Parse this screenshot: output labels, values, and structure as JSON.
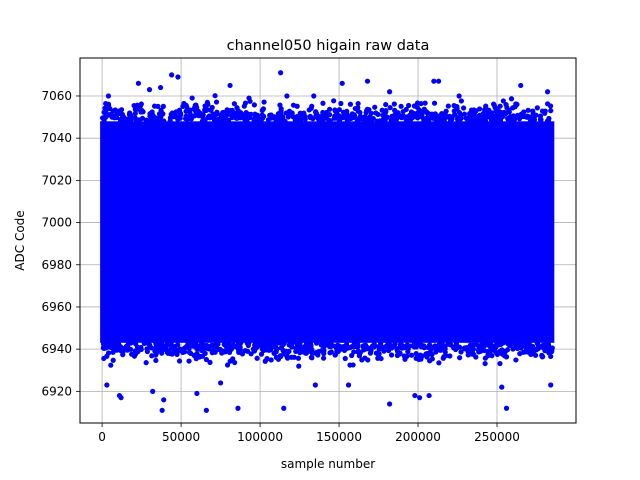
{
  "chart_data": {
    "type": "scatter",
    "title": "channel050 higain raw data",
    "xlabel": "sample number",
    "ylabel": "ADC Code",
    "xlim": [
      -14000,
      300000
    ],
    "ylim": [
      6905,
      7078
    ],
    "x_ticks": [
      0,
      50000,
      100000,
      150000,
      200000,
      250000
    ],
    "y_ticks": [
      6920,
      6940,
      6960,
      6980,
      7000,
      7020,
      7040,
      7060
    ],
    "grid": true,
    "color": "#0000ff",
    "series": [
      {
        "sample_count": 285000,
        "x_range": [
          0,
          285000
        ],
        "dense_band": [
          6943,
          7048
        ],
        "points": [
          {
            "x": 113000,
            "y": 7071
          },
          {
            "x": 44000,
            "y": 7070
          },
          {
            "x": 48000,
            "y": 7069
          },
          {
            "x": 210000,
            "y": 7067
          },
          {
            "x": 213000,
            "y": 7067
          },
          {
            "x": 168000,
            "y": 7067
          },
          {
            "x": 23000,
            "y": 7066
          },
          {
            "x": 152000,
            "y": 7066
          },
          {
            "x": 265000,
            "y": 7065
          },
          {
            "x": 81000,
            "y": 7065
          },
          {
            "x": 37000,
            "y": 7064
          },
          {
            "x": 30000,
            "y": 7063
          },
          {
            "x": 182000,
            "y": 7062
          },
          {
            "x": 282000,
            "y": 7062
          },
          {
            "x": 4000,
            "y": 7060
          },
          {
            "x": 117000,
            "y": 7060
          },
          {
            "x": 134000,
            "y": 7060
          },
          {
            "x": 226000,
            "y": 7060
          },
          {
            "x": 57000,
            "y": 7059
          },
          {
            "x": 93000,
            "y": 7059
          },
          {
            "x": 3000,
            "y": 6923
          },
          {
            "x": 11000,
            "y": 6918
          },
          {
            "x": 12000,
            "y": 6917
          },
          {
            "x": 32000,
            "y": 6920
          },
          {
            "x": 39000,
            "y": 6916
          },
          {
            "x": 38000,
            "y": 6911
          },
          {
            "x": 60000,
            "y": 6919
          },
          {
            "x": 66000,
            "y": 6911
          },
          {
            "x": 75000,
            "y": 6924
          },
          {
            "x": 86000,
            "y": 6912
          },
          {
            "x": 115000,
            "y": 6912
          },
          {
            "x": 135000,
            "y": 6923
          },
          {
            "x": 156000,
            "y": 6923
          },
          {
            "x": 182000,
            "y": 6914
          },
          {
            "x": 198000,
            "y": 6918
          },
          {
            "x": 201000,
            "y": 6917
          },
          {
            "x": 207000,
            "y": 6918
          },
          {
            "x": 253000,
            "y": 6922
          },
          {
            "x": 256000,
            "y": 6912
          },
          {
            "x": 284000,
            "y": 6923
          }
        ]
      }
    ]
  }
}
